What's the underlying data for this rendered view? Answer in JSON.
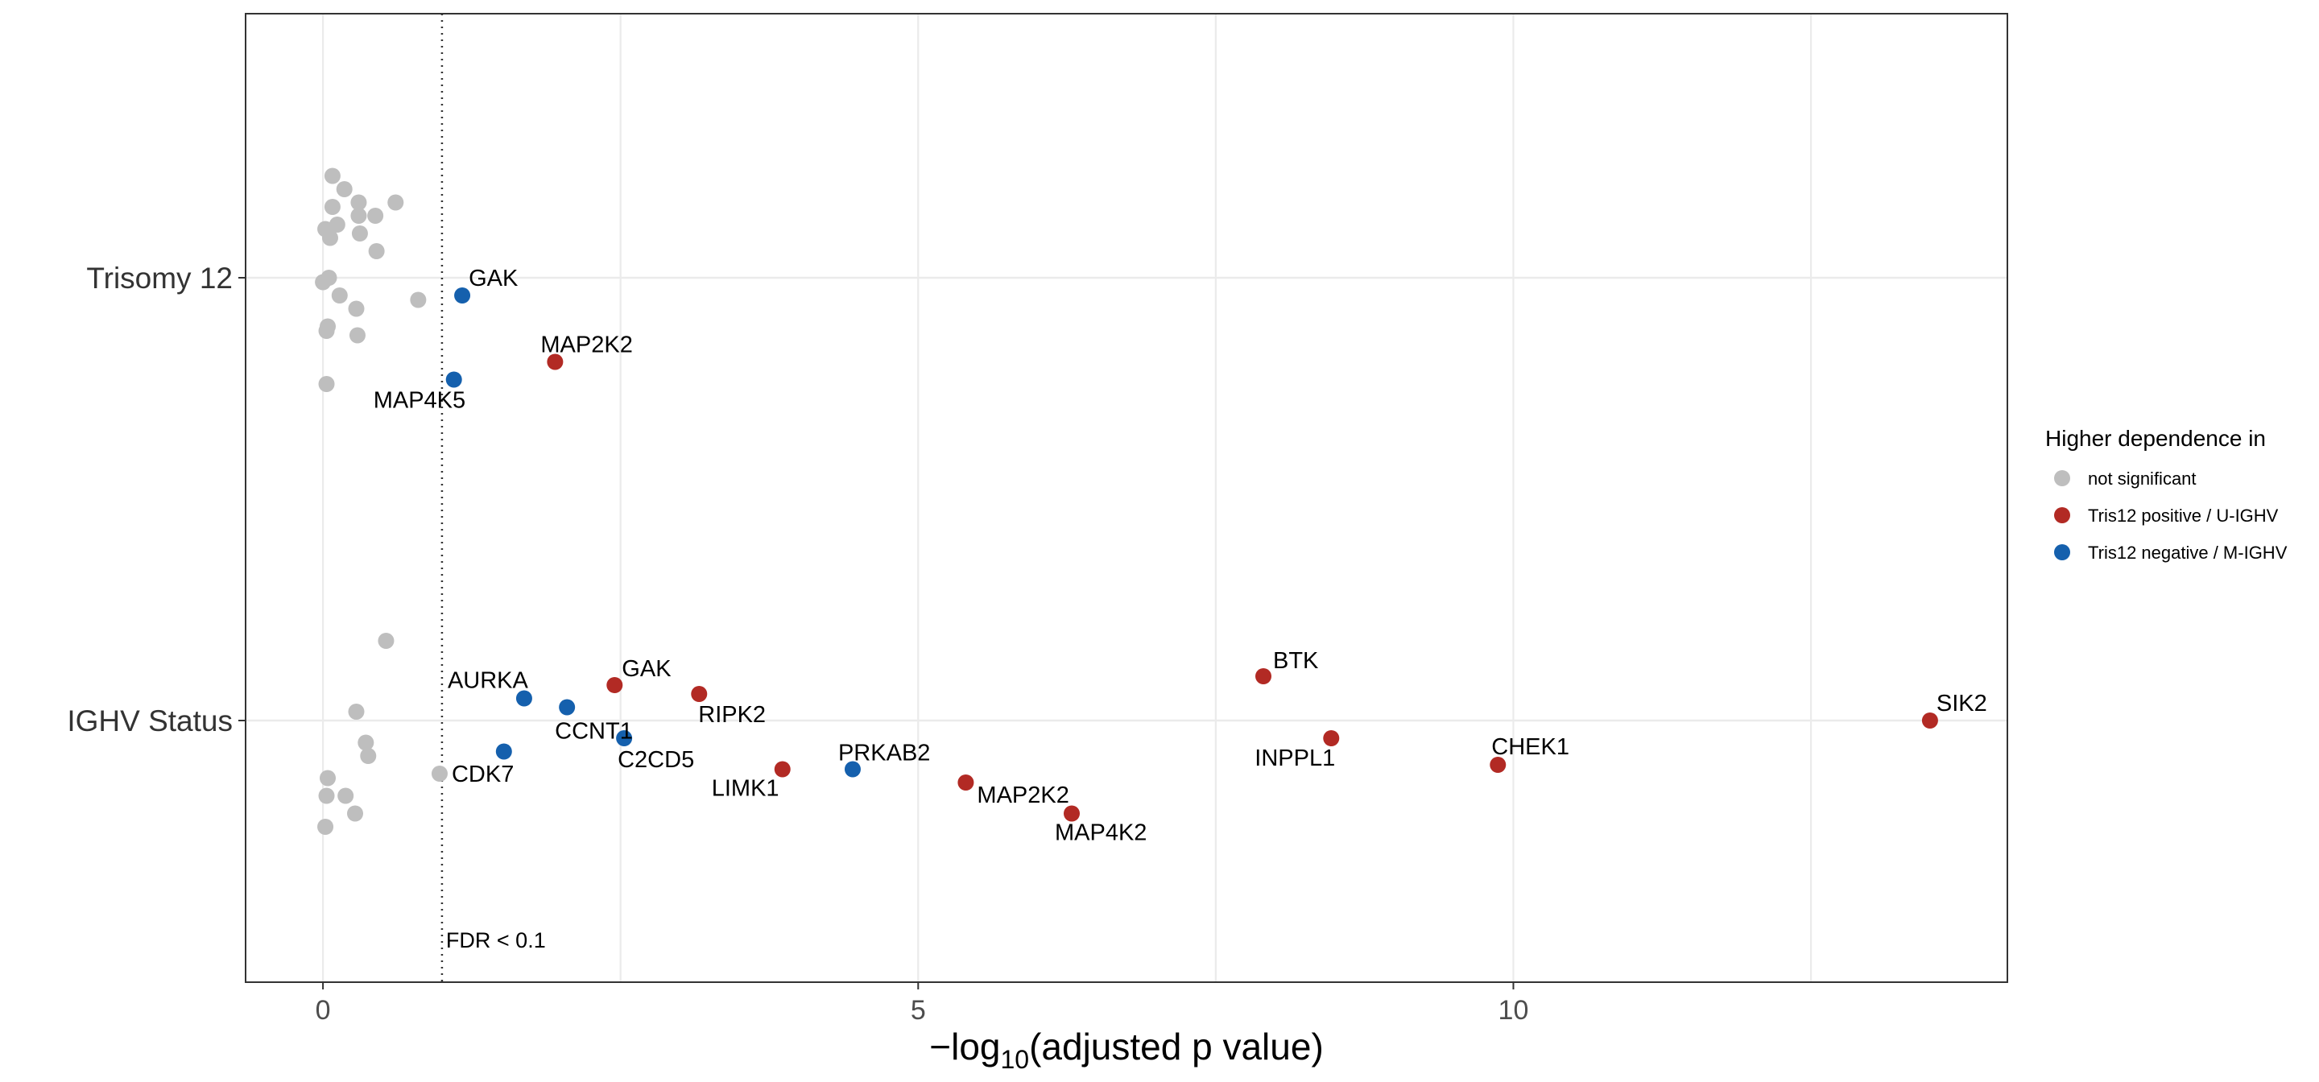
{
  "chart_data": {
    "type": "scatter",
    "xlabel": "−log₁₀(adjusted p value)",
    "xlabel_parts": {
      "minus": "−",
      "pre": "log",
      "sub": "10",
      "post": "(adjusted p value)"
    },
    "xlim": [
      -0.65,
      14.15
    ],
    "xticks": [
      0,
      5,
      10
    ],
    "x_gridlines": [
      0,
      2.5,
      5,
      7.5,
      10,
      12.5
    ],
    "categories": [
      "Trisomy 12",
      "IGHV Status"
    ],
    "grid": true,
    "threshold": {
      "x": 1.0,
      "label": "FDR < 0.1"
    },
    "legend": {
      "title": "Higher dependence in",
      "position": "right",
      "entries": [
        {
          "key": "ns",
          "label": "not significant",
          "color": "#BEBEBE"
        },
        {
          "key": "pos",
          "label": "Tris12 positive / U-IGHV",
          "color": "#B22A24"
        },
        {
          "key": "neg",
          "label": "Tris12 negative / M-IGHV",
          "color": "#1560AD"
        }
      ]
    },
    "series": [
      {
        "category": "Trisomy 12",
        "points": [
          {
            "x": 0.08,
            "jitter": 0.23,
            "group": "ns"
          },
          {
            "x": 0.18,
            "jitter": 0.2,
            "group": "ns"
          },
          {
            "x": 0.3,
            "jitter": 0.17,
            "group": "ns"
          },
          {
            "x": 0.61,
            "jitter": 0.17,
            "group": "ns"
          },
          {
            "x": 0.08,
            "jitter": 0.16,
            "group": "ns"
          },
          {
            "x": 0.3,
            "jitter": 0.14,
            "group": "ns"
          },
          {
            "x": 0.44,
            "jitter": 0.14,
            "group": "ns"
          },
          {
            "x": 0.12,
            "jitter": 0.12,
            "group": "ns"
          },
          {
            "x": 0.02,
            "jitter": 0.11,
            "group": "ns"
          },
          {
            "x": 0.31,
            "jitter": 0.1,
            "group": "ns"
          },
          {
            "x": 0.06,
            "jitter": 0.09,
            "group": "ns"
          },
          {
            "x": 0.45,
            "jitter": 0.06,
            "group": "ns"
          },
          {
            "x": 0.05,
            "jitter": 0.0,
            "group": "ns"
          },
          {
            "x": 0.0,
            "jitter": -0.01,
            "group": "ns"
          },
          {
            "x": 0.14,
            "jitter": -0.04,
            "group": "ns"
          },
          {
            "x": 0.8,
            "jitter": -0.05,
            "group": "ns"
          },
          {
            "x": 0.28,
            "jitter": -0.07,
            "group": "ns"
          },
          {
            "x": 0.04,
            "jitter": -0.11,
            "group": "ns"
          },
          {
            "x": 0.03,
            "jitter": -0.12,
            "group": "ns"
          },
          {
            "x": 0.29,
            "jitter": -0.13,
            "group": "ns"
          },
          {
            "x": 0.03,
            "jitter": -0.24,
            "group": "ns"
          },
          {
            "x": 1.17,
            "jitter": -0.04,
            "group": "neg",
            "label": "GAK"
          },
          {
            "x": 1.95,
            "jitter": -0.19,
            "group": "pos",
            "label": "MAP2K2"
          },
          {
            "x": 1.1,
            "jitter": -0.23,
            "group": "neg",
            "label": "MAP4K5"
          }
        ]
      },
      {
        "category": "IGHV Status",
        "points": [
          {
            "x": 0.53,
            "jitter": 0.18,
            "group": "ns"
          },
          {
            "x": 0.28,
            "jitter": 0.02,
            "group": "ns"
          },
          {
            "x": 0.36,
            "jitter": -0.05,
            "group": "ns"
          },
          {
            "x": 0.38,
            "jitter": -0.08,
            "group": "ns"
          },
          {
            "x": 0.98,
            "jitter": -0.12,
            "group": "ns",
            "label": "CDK7"
          },
          {
            "x": 0.04,
            "jitter": -0.13,
            "group": "ns"
          },
          {
            "x": 0.03,
            "jitter": -0.17,
            "group": "ns"
          },
          {
            "x": 0.19,
            "jitter": -0.17,
            "group": "ns"
          },
          {
            "x": 0.27,
            "jitter": -0.21,
            "group": "ns"
          },
          {
            "x": 0.02,
            "jitter": -0.24,
            "group": "ns"
          },
          {
            "x": 1.69,
            "jitter": 0.05,
            "group": "neg",
            "label": "AURKA"
          },
          {
            "x": 2.05,
            "jitter": 0.03,
            "group": "neg",
            "label": "CCNT1"
          },
          {
            "x": 2.53,
            "jitter": -0.04,
            "group": "neg",
            "label": "C2CD5"
          },
          {
            "x": 1.52,
            "jitter": -0.07,
            "group": "neg"
          },
          {
            "x": 4.45,
            "jitter": -0.11,
            "group": "neg",
            "label": "PRKAB2"
          },
          {
            "x": 2.45,
            "jitter": 0.08,
            "group": "pos",
            "label": "GAK"
          },
          {
            "x": 3.16,
            "jitter": 0.06,
            "group": "pos",
            "label": "RIPK2"
          },
          {
            "x": 3.86,
            "jitter": -0.11,
            "group": "pos",
            "label": "LIMK1"
          },
          {
            "x": 5.4,
            "jitter": -0.14,
            "group": "pos",
            "label": "MAP2K2"
          },
          {
            "x": 6.29,
            "jitter": -0.21,
            "group": "pos",
            "label": "MAP4K2"
          },
          {
            "x": 7.9,
            "jitter": 0.1,
            "group": "pos",
            "label": "BTK"
          },
          {
            "x": 8.47,
            "jitter": -0.04,
            "group": "pos",
            "label": "INPPL1"
          },
          {
            "x": 9.87,
            "jitter": -0.1,
            "group": "pos",
            "label": "CHEK1"
          },
          {
            "x": 13.5,
            "jitter": 0.0,
            "group": "pos",
            "label": "SIK2"
          }
        ]
      }
    ]
  }
}
